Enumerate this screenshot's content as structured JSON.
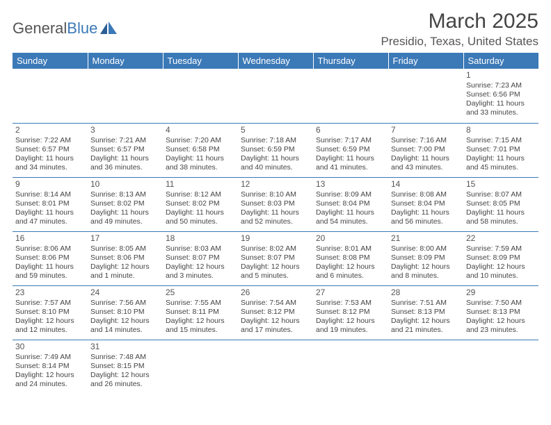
{
  "brand": {
    "part1": "General",
    "part2": "Blue"
  },
  "title": "March 2025",
  "location": "Presidio, Texas, United States",
  "colors": {
    "accent": "#3b79b7",
    "text": "#444444",
    "bg": "#ffffff"
  },
  "weekdays": [
    "Sunday",
    "Monday",
    "Tuesday",
    "Wednesday",
    "Thursday",
    "Friday",
    "Saturday"
  ],
  "weeks": [
    [
      null,
      null,
      null,
      null,
      null,
      null,
      {
        "n": "1",
        "sr": "Sunrise: 7:23 AM",
        "ss": "Sunset: 6:56 PM",
        "d1": "Daylight: 11 hours",
        "d2": "and 33 minutes."
      }
    ],
    [
      {
        "n": "2",
        "sr": "Sunrise: 7:22 AM",
        "ss": "Sunset: 6:57 PM",
        "d1": "Daylight: 11 hours",
        "d2": "and 34 minutes."
      },
      {
        "n": "3",
        "sr": "Sunrise: 7:21 AM",
        "ss": "Sunset: 6:57 PM",
        "d1": "Daylight: 11 hours",
        "d2": "and 36 minutes."
      },
      {
        "n": "4",
        "sr": "Sunrise: 7:20 AM",
        "ss": "Sunset: 6:58 PM",
        "d1": "Daylight: 11 hours",
        "d2": "and 38 minutes."
      },
      {
        "n": "5",
        "sr": "Sunrise: 7:18 AM",
        "ss": "Sunset: 6:59 PM",
        "d1": "Daylight: 11 hours",
        "d2": "and 40 minutes."
      },
      {
        "n": "6",
        "sr": "Sunrise: 7:17 AM",
        "ss": "Sunset: 6:59 PM",
        "d1": "Daylight: 11 hours",
        "d2": "and 41 minutes."
      },
      {
        "n": "7",
        "sr": "Sunrise: 7:16 AM",
        "ss": "Sunset: 7:00 PM",
        "d1": "Daylight: 11 hours",
        "d2": "and 43 minutes."
      },
      {
        "n": "8",
        "sr": "Sunrise: 7:15 AM",
        "ss": "Sunset: 7:01 PM",
        "d1": "Daylight: 11 hours",
        "d2": "and 45 minutes."
      }
    ],
    [
      {
        "n": "9",
        "sr": "Sunrise: 8:14 AM",
        "ss": "Sunset: 8:01 PM",
        "d1": "Daylight: 11 hours",
        "d2": "and 47 minutes."
      },
      {
        "n": "10",
        "sr": "Sunrise: 8:13 AM",
        "ss": "Sunset: 8:02 PM",
        "d1": "Daylight: 11 hours",
        "d2": "and 49 minutes."
      },
      {
        "n": "11",
        "sr": "Sunrise: 8:12 AM",
        "ss": "Sunset: 8:02 PM",
        "d1": "Daylight: 11 hours",
        "d2": "and 50 minutes."
      },
      {
        "n": "12",
        "sr": "Sunrise: 8:10 AM",
        "ss": "Sunset: 8:03 PM",
        "d1": "Daylight: 11 hours",
        "d2": "and 52 minutes."
      },
      {
        "n": "13",
        "sr": "Sunrise: 8:09 AM",
        "ss": "Sunset: 8:04 PM",
        "d1": "Daylight: 11 hours",
        "d2": "and 54 minutes."
      },
      {
        "n": "14",
        "sr": "Sunrise: 8:08 AM",
        "ss": "Sunset: 8:04 PM",
        "d1": "Daylight: 11 hours",
        "d2": "and 56 minutes."
      },
      {
        "n": "15",
        "sr": "Sunrise: 8:07 AM",
        "ss": "Sunset: 8:05 PM",
        "d1": "Daylight: 11 hours",
        "d2": "and 58 minutes."
      }
    ],
    [
      {
        "n": "16",
        "sr": "Sunrise: 8:06 AM",
        "ss": "Sunset: 8:06 PM",
        "d1": "Daylight: 11 hours",
        "d2": "and 59 minutes."
      },
      {
        "n": "17",
        "sr": "Sunrise: 8:05 AM",
        "ss": "Sunset: 8:06 PM",
        "d1": "Daylight: 12 hours",
        "d2": "and 1 minute."
      },
      {
        "n": "18",
        "sr": "Sunrise: 8:03 AM",
        "ss": "Sunset: 8:07 PM",
        "d1": "Daylight: 12 hours",
        "d2": "and 3 minutes."
      },
      {
        "n": "19",
        "sr": "Sunrise: 8:02 AM",
        "ss": "Sunset: 8:07 PM",
        "d1": "Daylight: 12 hours",
        "d2": "and 5 minutes."
      },
      {
        "n": "20",
        "sr": "Sunrise: 8:01 AM",
        "ss": "Sunset: 8:08 PM",
        "d1": "Daylight: 12 hours",
        "d2": "and 6 minutes."
      },
      {
        "n": "21",
        "sr": "Sunrise: 8:00 AM",
        "ss": "Sunset: 8:09 PM",
        "d1": "Daylight: 12 hours",
        "d2": "and 8 minutes."
      },
      {
        "n": "22",
        "sr": "Sunrise: 7:59 AM",
        "ss": "Sunset: 8:09 PM",
        "d1": "Daylight: 12 hours",
        "d2": "and 10 minutes."
      }
    ],
    [
      {
        "n": "23",
        "sr": "Sunrise: 7:57 AM",
        "ss": "Sunset: 8:10 PM",
        "d1": "Daylight: 12 hours",
        "d2": "and 12 minutes."
      },
      {
        "n": "24",
        "sr": "Sunrise: 7:56 AM",
        "ss": "Sunset: 8:10 PM",
        "d1": "Daylight: 12 hours",
        "d2": "and 14 minutes."
      },
      {
        "n": "25",
        "sr": "Sunrise: 7:55 AM",
        "ss": "Sunset: 8:11 PM",
        "d1": "Daylight: 12 hours",
        "d2": "and 15 minutes."
      },
      {
        "n": "26",
        "sr": "Sunrise: 7:54 AM",
        "ss": "Sunset: 8:12 PM",
        "d1": "Daylight: 12 hours",
        "d2": "and 17 minutes."
      },
      {
        "n": "27",
        "sr": "Sunrise: 7:53 AM",
        "ss": "Sunset: 8:12 PM",
        "d1": "Daylight: 12 hours",
        "d2": "and 19 minutes."
      },
      {
        "n": "28",
        "sr": "Sunrise: 7:51 AM",
        "ss": "Sunset: 8:13 PM",
        "d1": "Daylight: 12 hours",
        "d2": "and 21 minutes."
      },
      {
        "n": "29",
        "sr": "Sunrise: 7:50 AM",
        "ss": "Sunset: 8:13 PM",
        "d1": "Daylight: 12 hours",
        "d2": "and 23 minutes."
      }
    ],
    [
      {
        "n": "30",
        "sr": "Sunrise: 7:49 AM",
        "ss": "Sunset: 8:14 PM",
        "d1": "Daylight: 12 hours",
        "d2": "and 24 minutes."
      },
      {
        "n": "31",
        "sr": "Sunrise: 7:48 AM",
        "ss": "Sunset: 8:15 PM",
        "d1": "Daylight: 12 hours",
        "d2": "and 26 minutes."
      },
      null,
      null,
      null,
      null,
      null
    ]
  ]
}
